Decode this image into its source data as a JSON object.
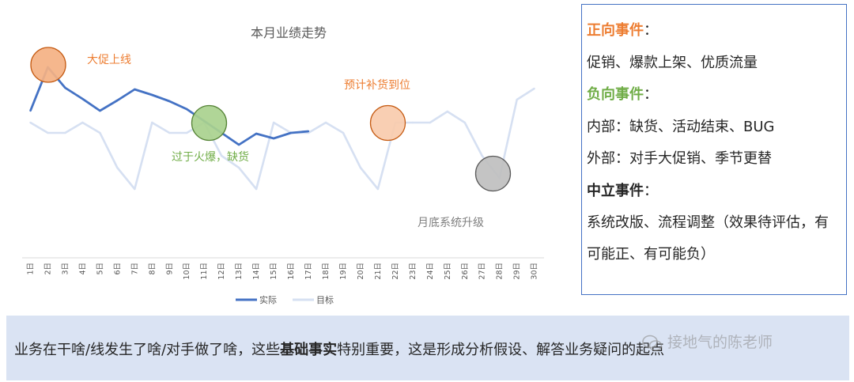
{
  "chart_data": {
    "type": "line",
    "title": "本月业绩走势",
    "categories": [
      "1日",
      "2日",
      "3日",
      "4日",
      "5日",
      "6日",
      "7日",
      "8日",
      "9日",
      "10日",
      "11日",
      "12日",
      "13日",
      "14日",
      "15日",
      "16日",
      "17日",
      "18日",
      "19日",
      "20日",
      "21日",
      "22日",
      "23日",
      "24日",
      "25日",
      "26日",
      "27日",
      "28日",
      "29日",
      "30日"
    ],
    "series": [
      {
        "name": "实际",
        "color": "#4472c4",
        "values": [
          140,
          85,
          111,
          125,
          140,
          127,
          113,
          120,
          128,
          138,
          153,
          168,
          183,
          169,
          175,
          168,
          166,
          null,
          null,
          null,
          null,
          null,
          null,
          null,
          null,
          null,
          null,
          null,
          null,
          null
        ]
      },
      {
        "name": "目标",
        "color": "#d6e0f2",
        "values": [
          155,
          168,
          168,
          155,
          168,
          212,
          239,
          155,
          168,
          168,
          155,
          197,
          212,
          239,
          155,
          168,
          168,
          155,
          168,
          212,
          239,
          155,
          155,
          155,
          141,
          155,
          197,
          225,
          126,
          112
        ]
      }
    ],
    "legend": "bottom",
    "grid": false,
    "annotations": [
      {
        "text": "大促上线",
        "color": "#ed7d31"
      },
      {
        "text": "过于火爆，缺货",
        "color": "#70ad47"
      },
      {
        "text": "预计补货到位",
        "color": "#ed7d31"
      },
      {
        "text": "月底系统升级",
        "color": "#7f7f7f"
      }
    ],
    "markers": [
      {
        "day_index": 1,
        "fill": "#f4b183",
        "stroke": "#c55a11"
      },
      {
        "day_index": 10,
        "fill": "#a9d18e",
        "stroke": "#548235"
      },
      {
        "day_index": 20,
        "fill": "#f8cbad",
        "stroke": "#c55a11"
      },
      {
        "day_index": 27,
        "fill": "#bfbfbf",
        "stroke": "#595959"
      }
    ]
  },
  "events": {
    "positive_title": "正向事件",
    "positive_color": "#ed7d31",
    "positive_items": "促销、爆款上架、优质流量",
    "negative_title": "负向事件",
    "negative_color": "#70ad47",
    "negative_internal": "内部：缺货、活动结束、BUG",
    "negative_external": "外部：对手大促销、季节更替",
    "neutral_title": "中立事件",
    "neutral_items": "系统改版、流程调整（效果待评估，有可能正、有可能负）",
    "colon": "："
  },
  "banner": {
    "text_before": "业务在干啥/线发生了啥/对手做了啥，这些",
    "text_bold": "基础事实",
    "text_after": "特别重要，这是形成分析假设、解答业务疑问的起点"
  },
  "watermark": "接地气的陈老师"
}
